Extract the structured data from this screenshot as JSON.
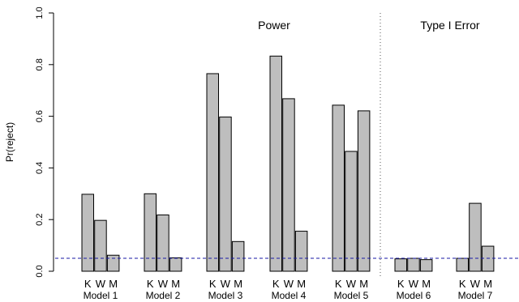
{
  "chart_data": {
    "type": "bar",
    "ylabel": "Pr(reject)",
    "ylim": [
      0,
      1
    ],
    "yticks": [
      "0.0",
      "0.2",
      "0.4",
      "0.6",
      "0.8",
      "1.0"
    ],
    "series_labels": [
      "K",
      "W",
      "M"
    ],
    "groups": [
      {
        "label": "Model 1",
        "values": [
          0.298,
          0.197,
          0.062
        ]
      },
      {
        "label": "Model 2",
        "values": [
          0.3,
          0.218,
          0.052
        ]
      },
      {
        "label": "Model 3",
        "values": [
          0.765,
          0.597,
          0.115
        ]
      },
      {
        "label": "Model 4",
        "values": [
          0.833,
          0.668,
          0.155
        ]
      },
      {
        "label": "Model 5",
        "values": [
          0.643,
          0.464,
          0.621
        ]
      },
      {
        "label": "Model 6",
        "values": [
          0.048,
          0.05,
          0.045
        ]
      },
      {
        "label": "Model 7",
        "values": [
          0.05,
          0.263,
          0.097
        ]
      }
    ],
    "reference_line": {
      "value": 0.05,
      "style": "dashed",
      "color": "#1a1aa6"
    },
    "annotations": [
      {
        "text": "Power"
      },
      {
        "text": "Type I Error"
      }
    ],
    "bar_fill": "#bebebe",
    "bar_stroke": "#000000",
    "divider_style": "dotted",
    "grid": false
  }
}
